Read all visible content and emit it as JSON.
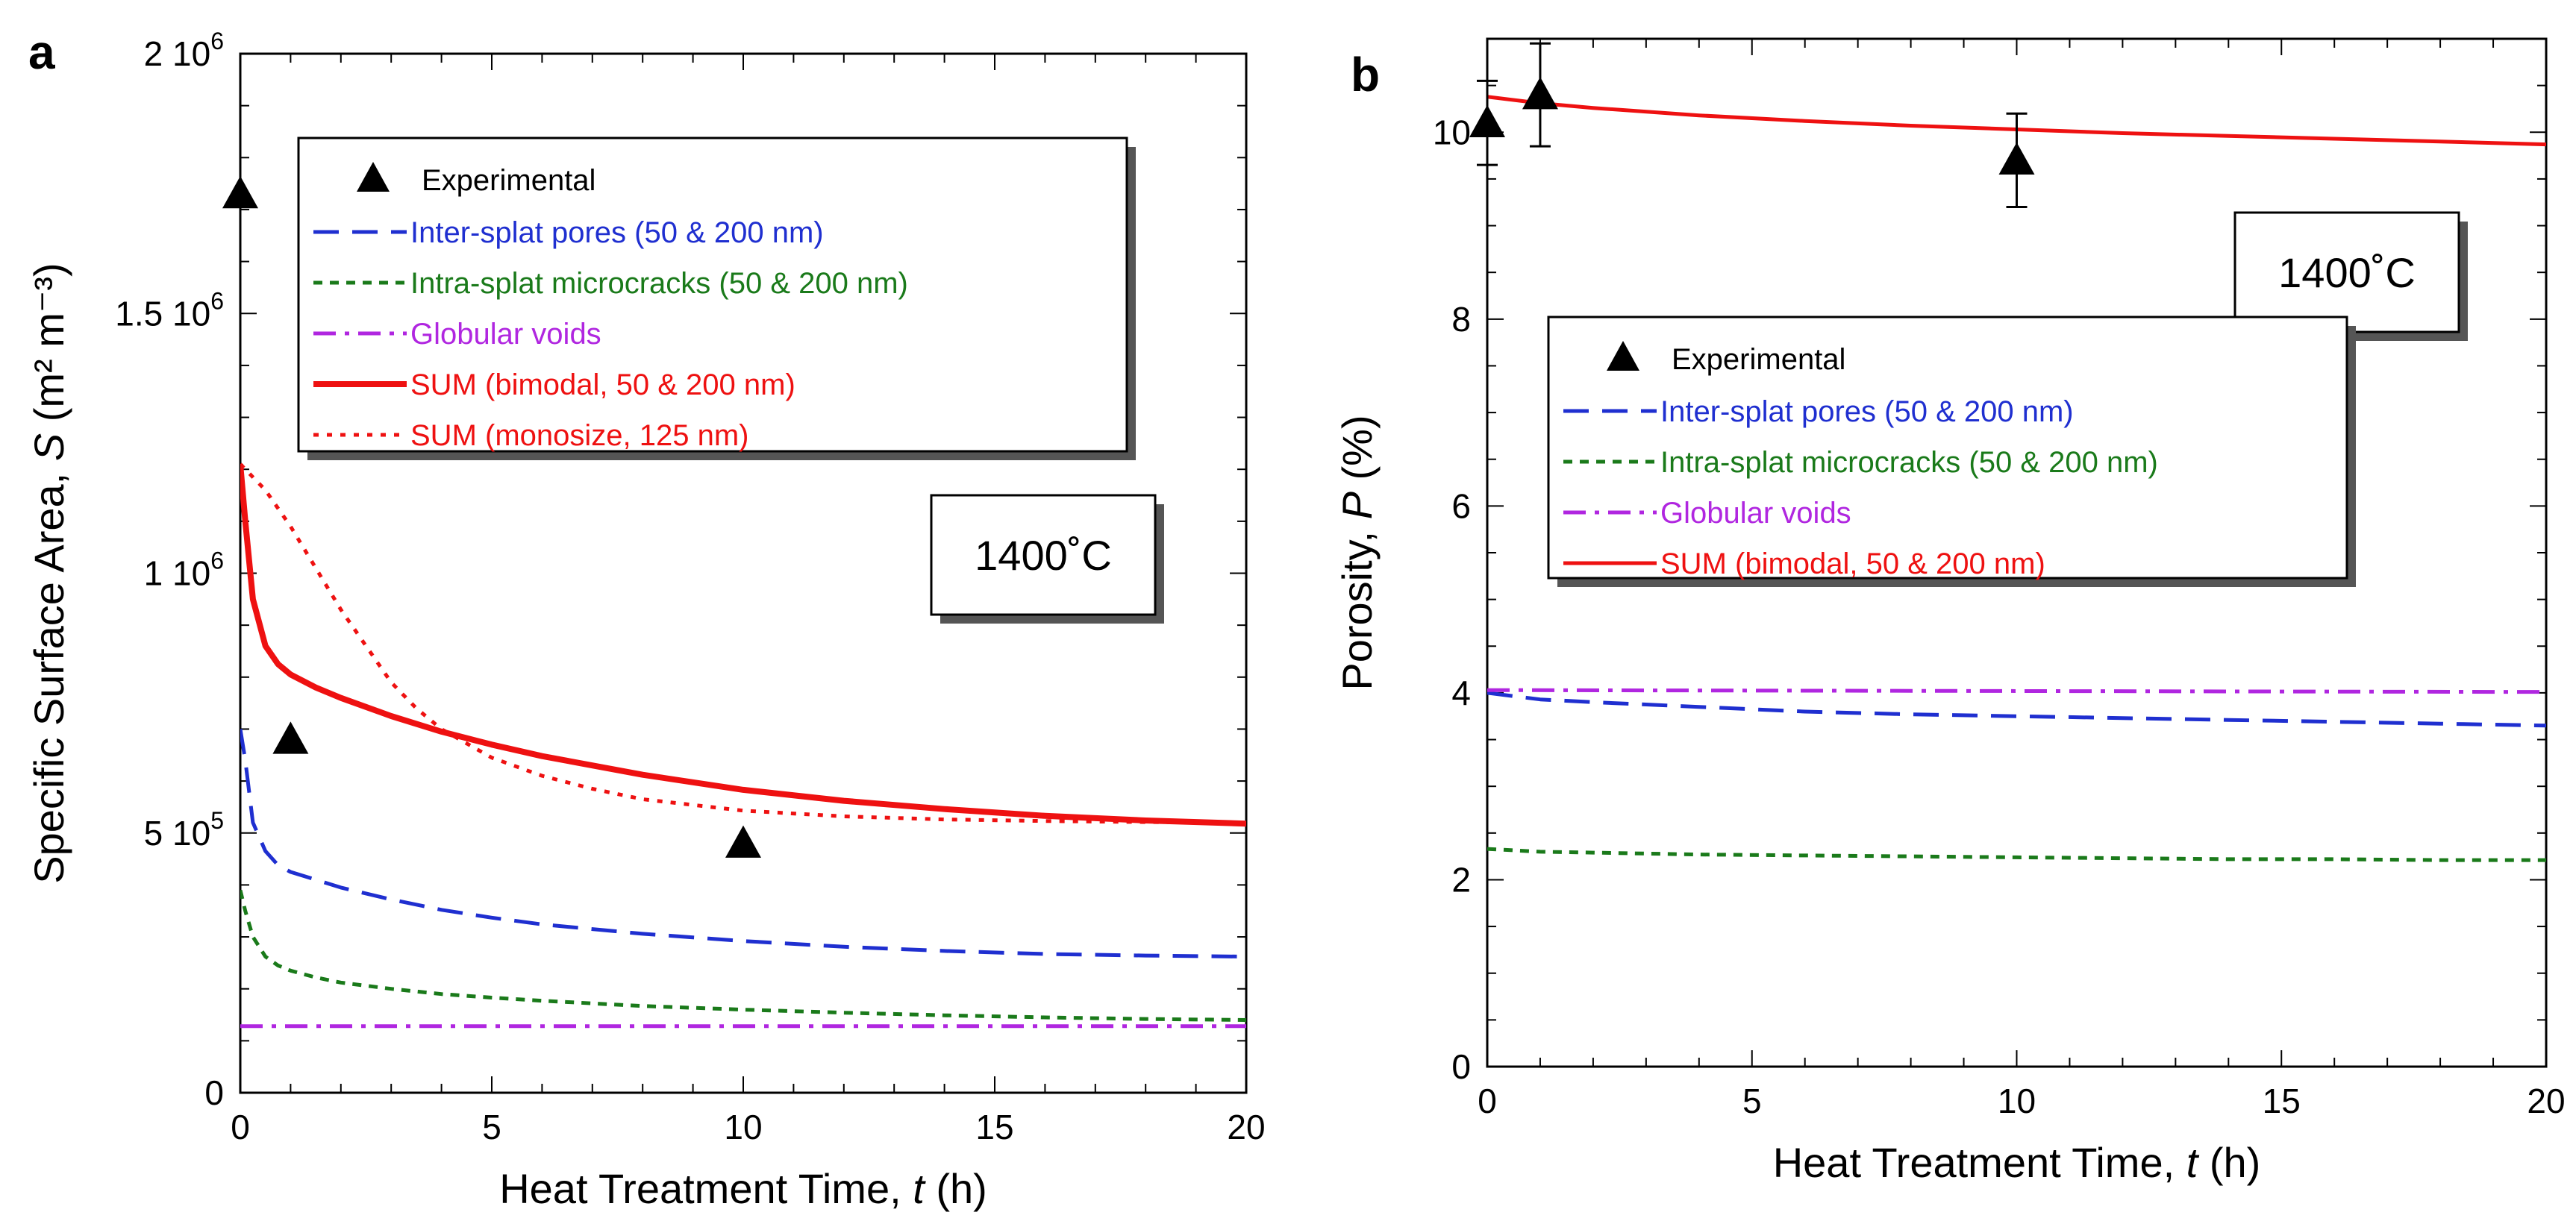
{
  "chart_data": [
    {
      "panel": "a",
      "type": "line",
      "xlabel": "Heat Treatment Time, ",
      "xlabel_var": "t",
      "xlabel_unit": " (h)",
      "ylabel": "Specific Surface Area, ",
      "ylabel_var": "S",
      "ylabel_unit": " (m² m⁻³)",
      "xlim": [
        0,
        20
      ],
      "ylim": [
        0,
        2000000
      ],
      "x_ticks": [
        0,
        5,
        10,
        15,
        20
      ],
      "x_tick_labels": [
        "0",
        "5",
        "10",
        "15",
        "20"
      ],
      "y_ticks": [
        0,
        500000,
        1000000,
        1500000,
        2000000
      ],
      "y_tick_labels": [
        {
          "mant": "0",
          "exp": ""
        },
        {
          "mant": "5 10",
          "exp": "5"
        },
        {
          "mant": "1 10",
          "exp": "6"
        },
        {
          "mant": "1.5 10",
          "exp": "6"
        },
        {
          "mant": "2 10",
          "exp": "6"
        }
      ],
      "annotation": "1400˚C",
      "legend_position": "top-center",
      "experimental": {
        "name": "Experimental",
        "x": [
          0,
          1,
          10
        ],
        "y": [
          1730000,
          680000,
          480000
        ],
        "err": [
          0,
          0,
          0
        ]
      },
      "series": [
        {
          "name": "Inter-splat pores (50 & 200 nm)",
          "color": "#1f2fd0",
          "dash": "long",
          "x": [
            0,
            0.1,
            0.25,
            0.5,
            0.75,
            1,
            1.5,
            2,
            3,
            4,
            5,
            6,
            8,
            10,
            12,
            14,
            16,
            18,
            20
          ],
          "y": [
            700000,
            640000,
            520000,
            465000,
            438000,
            425000,
            410000,
            395000,
            372000,
            352000,
            337000,
            324000,
            306000,
            292000,
            281000,
            273000,
            267000,
            264000,
            262000
          ]
        },
        {
          "name": "Intra-splat microcracks (50 & 200 nm)",
          "color": "#1a7a1a",
          "dash": "short",
          "x": [
            0,
            0.1,
            0.25,
            0.5,
            0.75,
            1,
            1.5,
            2,
            3,
            4,
            5,
            6,
            8,
            10,
            12,
            14,
            16,
            18,
            20
          ],
          "y": [
            390000,
            350000,
            300000,
            262000,
            245000,
            235000,
            222000,
            212000,
            200000,
            190000,
            183000,
            177000,
            167000,
            160000,
            154000,
            149000,
            145000,
            142000,
            140000
          ]
        },
        {
          "name": "Globular voids",
          "color": "#b026e0",
          "dash": "dashdot",
          "x": [
            0,
            20
          ],
          "y": [
            128000,
            128000
          ]
        },
        {
          "name": "SUM (bimodal, 50 & 200 nm)",
          "color": "#ee1111",
          "dash": "solid",
          "x": [
            0,
            0.1,
            0.25,
            0.5,
            0.75,
            1,
            1.5,
            2,
            3,
            4,
            5,
            6,
            8,
            10,
            12,
            14,
            16,
            18,
            20
          ],
          "y": [
            1210000,
            1100000,
            950000,
            860000,
            825000,
            805000,
            780000,
            760000,
            725000,
            695000,
            670000,
            648000,
            612000,
            583000,
            562000,
            546000,
            533000,
            524000,
            518000
          ]
        },
        {
          "name": "SUM (monosize, 125 nm)",
          "color": "#ee1111",
          "dash": "dot",
          "x": [
            0,
            0.5,
            1,
            1.5,
            2,
            2.5,
            3,
            3.5,
            4,
            5,
            6,
            7,
            8,
            10,
            12,
            14,
            16,
            18,
            20
          ],
          "y": [
            1210000,
            1160000,
            1090000,
            1010000,
            930000,
            860000,
            790000,
            740000,
            700000,
            645000,
            610000,
            585000,
            565000,
            543000,
            532000,
            526000,
            523000,
            521000,
            520000
          ]
        }
      ]
    },
    {
      "panel": "b",
      "type": "line",
      "xlabel": "Heat Treatment Time, ",
      "xlabel_var": "t",
      "xlabel_unit": " (h)",
      "ylabel": "Porosity, ",
      "ylabel_var": "P",
      "ylabel_unit": " (%)",
      "xlim": [
        0,
        20
      ],
      "ylim": [
        0,
        11
      ],
      "x_ticks": [
        0,
        5,
        10,
        15,
        20
      ],
      "x_tick_labels": [
        "0",
        "5",
        "10",
        "15",
        "20"
      ],
      "y_ticks": [
        0,
        2,
        4,
        6,
        8,
        10
      ],
      "y_tick_labels": [
        "0",
        "2",
        "4",
        "6",
        "8",
        "10"
      ],
      "annotation": "1400˚C",
      "legend_position": "center",
      "experimental": {
        "name": "Experimental",
        "x": [
          0,
          1,
          10
        ],
        "y": [
          10.1,
          10.4,
          9.7
        ],
        "err": [
          0.45,
          0.55,
          0.5
        ]
      },
      "series": [
        {
          "name": "Inter-splat pores (50 & 200 nm)",
          "color": "#1f2fd0",
          "dash": "long",
          "x": [
            0,
            1,
            2,
            4,
            6,
            8,
            10,
            12,
            14,
            16,
            18,
            20
          ],
          "y": [
            4.0,
            3.93,
            3.9,
            3.85,
            3.8,
            3.77,
            3.75,
            3.73,
            3.71,
            3.69,
            3.67,
            3.65
          ]
        },
        {
          "name": "Intra-splat microcracks (50 & 200 nm)",
          "color": "#1a7a1a",
          "dash": "short",
          "x": [
            0,
            1,
            2,
            4,
            6,
            8,
            10,
            12,
            14,
            16,
            18,
            20
          ],
          "y": [
            2.33,
            2.3,
            2.29,
            2.27,
            2.26,
            2.25,
            2.24,
            2.23,
            2.22,
            2.22,
            2.21,
            2.21
          ]
        },
        {
          "name": "Globular voids",
          "color": "#b026e0",
          "dash": "dashdot",
          "x": [
            0,
            20
          ],
          "y": [
            4.03,
            4.01
          ]
        },
        {
          "name": "SUM (bimodal, 50 & 200 nm)",
          "color": "#ee1111",
          "dash": "solid",
          "x": [
            0,
            1,
            2,
            4,
            6,
            8,
            10,
            12,
            14,
            16,
            18,
            20
          ],
          "y": [
            10.38,
            10.31,
            10.26,
            10.18,
            10.12,
            10.07,
            10.03,
            9.99,
            9.96,
            9.93,
            9.9,
            9.87
          ]
        }
      ]
    }
  ]
}
